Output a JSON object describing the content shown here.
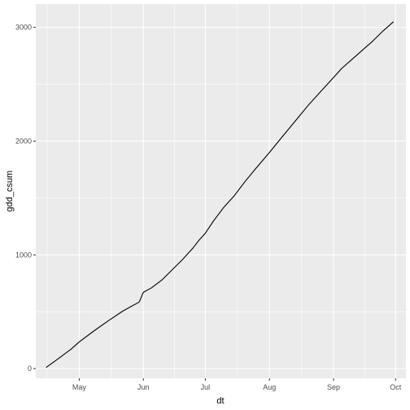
{
  "chart_data": {
    "type": "line",
    "title": "",
    "xlabel": "dt",
    "ylabel": "gdd_csum",
    "x_is_date": true,
    "year": 2021,
    "xlim": [
      "2021-04-10",
      "2021-10-06"
    ],
    "ylim": [
      -85,
      3205
    ],
    "x_ticks": [
      {
        "date": "2021-05-01",
        "label": "May"
      },
      {
        "date": "2021-06-01",
        "label": "Jun"
      },
      {
        "date": "2021-07-01",
        "label": "Jul"
      },
      {
        "date": "2021-08-01",
        "label": "Aug"
      },
      {
        "date": "2021-09-01",
        "label": "Sep"
      },
      {
        "date": "2021-10-01",
        "label": "Oct"
      }
    ],
    "y_ticks": [
      {
        "value": 0,
        "label": "0"
      },
      {
        "value": 1000,
        "label": "1000"
      },
      {
        "value": 2000,
        "label": "2000"
      },
      {
        "value": 3000,
        "label": "3000"
      }
    ],
    "grid": true,
    "legend": "none",
    "colors": {
      "panel_bg": "#ebebeb",
      "grid_major": "#ffffff",
      "line": "#000000",
      "tick_label": "#4d4d4d",
      "axis_title": "#000000"
    },
    "series": [
      {
        "x": [
          "2021-04-15",
          "2021-04-20",
          "2021-04-27",
          "2021-05-01",
          "2021-05-08",
          "2021-05-15",
          "2021-05-22",
          "2021-05-26",
          "2021-05-30",
          "2021-06-01",
          "2021-06-05",
          "2021-06-10",
          "2021-06-15",
          "2021-06-20",
          "2021-06-25",
          "2021-06-28",
          "2021-07-01",
          "2021-07-05",
          "2021-07-10",
          "2021-07-15",
          "2021-07-20",
          "2021-07-25",
          "2021-08-01",
          "2021-08-05",
          "2021-08-10",
          "2021-08-15",
          "2021-08-20",
          "2021-08-25",
          "2021-09-01",
          "2021-09-05",
          "2021-09-10",
          "2021-09-15",
          "2021-09-20",
          "2021-09-25",
          "2021-09-30"
        ],
        "y": [
          10,
          75,
          170,
          235,
          330,
          420,
          505,
          545,
          585,
          670,
          710,
          780,
          870,
          960,
          1060,
          1130,
          1190,
          1300,
          1420,
          1520,
          1640,
          1750,
          1900,
          1990,
          2100,
          2210,
          2320,
          2420,
          2560,
          2640,
          2720,
          2800,
          2880,
          2970,
          3050
        ]
      }
    ]
  }
}
